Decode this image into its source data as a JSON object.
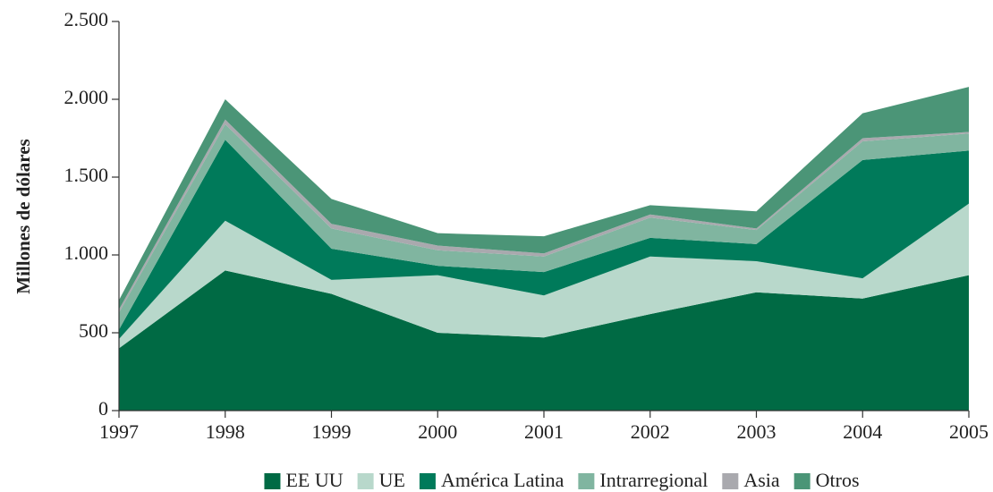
{
  "chart_data": {
    "type": "stacked_area",
    "y_label": "Millones de dólares",
    "categories": [
      "1997",
      "1998",
      "1999",
      "2000",
      "2001",
      "2002",
      "2003",
      "2004",
      "2005"
    ],
    "series": [
      {
        "name": "EE UU",
        "color": "#006a44",
        "values": [
          400,
          900,
          750,
          500,
          470,
          620,
          760,
          720,
          870
        ]
      },
      {
        "name": "UE",
        "color": "#b8d8cb",
        "values": [
          60,
          320,
          90,
          370,
          270,
          370,
          200,
          130,
          460
        ]
      },
      {
        "name": "América Latina",
        "color": "#007a5a",
        "values": [
          60,
          520,
          200,
          60,
          150,
          120,
          110,
          760,
          340
        ]
      },
      {
        "name": "Intrarregional",
        "color": "#80b5a0",
        "values": [
          110,
          100,
          130,
          100,
          100,
          130,
          90,
          120,
          110
        ]
      },
      {
        "name": "Asia",
        "color": "#a9a9ae",
        "values": [
          20,
          30,
          30,
          30,
          20,
          20,
          10,
          20,
          10
        ]
      },
      {
        "name": "Otros",
        "color": "#4b9577",
        "values": [
          60,
          130,
          160,
          80,
          110,
          60,
          110,
          160,
          290
        ]
      }
    ],
    "ylim": [
      0,
      2500
    ],
    "yticks": [
      0,
      500,
      {
        "value": 1000,
        "label": "1.000"
      },
      {
        "value": 1500,
        "label": "1.500"
      },
      {
        "value": 2000,
        "label": "2.000"
      },
      {
        "value": 2500,
        "label": "2.500"
      }
    ],
    "legend": "bottom"
  }
}
